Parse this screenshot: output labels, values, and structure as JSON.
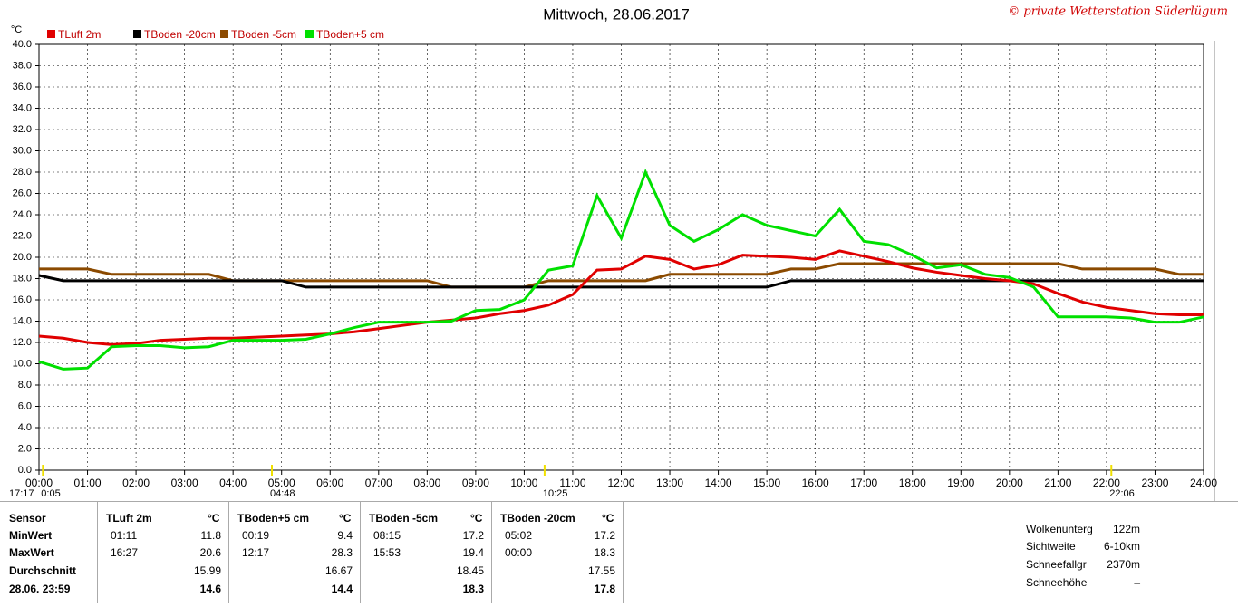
{
  "chart_data": {
    "type": "line",
    "title": "Mittwoch, 28.06.2017",
    "credit": "© private Wetterstation Süderlügum",
    "y_unit": "°C",
    "x": [
      0,
      0.5,
      1,
      1.5,
      2,
      2.5,
      3,
      3.5,
      4,
      4.5,
      5,
      5.5,
      6,
      6.5,
      7,
      7.5,
      8,
      8.5,
      9,
      9.5,
      10,
      10.5,
      11,
      11.5,
      12,
      12.5,
      13,
      13.5,
      14,
      14.5,
      15,
      15.5,
      16,
      16.5,
      17,
      17.5,
      18,
      18.5,
      19,
      19.5,
      20,
      20.5,
      21,
      21.5,
      22,
      22.5,
      23,
      23.5,
      24
    ],
    "series": [
      {
        "name": "TLuft 2m",
        "color": "#e00000",
        "values": [
          12.6,
          12.4,
          12.0,
          11.8,
          11.9,
          12.2,
          12.3,
          12.4,
          12.4,
          12.5,
          12.6,
          12.7,
          12.8,
          13.0,
          13.3,
          13.6,
          13.9,
          14.1,
          14.3,
          14.7,
          15.0,
          15.5,
          16.5,
          18.8,
          18.9,
          20.1,
          19.8,
          18.9,
          19.3,
          20.2,
          20.1,
          20.0,
          19.8,
          20.6,
          20.1,
          19.6,
          19.0,
          18.6,
          18.3,
          18.0,
          17.8,
          17.5,
          16.6,
          15.8,
          15.3,
          15.0,
          14.7,
          14.6,
          14.6
        ]
      },
      {
        "name": "TBoden -20cm",
        "color": "#000000",
        "values": [
          18.3,
          17.8,
          17.8,
          17.8,
          17.8,
          17.8,
          17.8,
          17.8,
          17.8,
          17.8,
          17.8,
          17.2,
          17.2,
          17.2,
          17.2,
          17.2,
          17.2,
          17.2,
          17.2,
          17.2,
          17.2,
          17.2,
          17.2,
          17.2,
          17.2,
          17.2,
          17.2,
          17.2,
          17.2,
          17.2,
          17.2,
          17.8,
          17.8,
          17.8,
          17.8,
          17.8,
          17.8,
          17.8,
          17.8,
          17.8,
          17.8,
          17.8,
          17.8,
          17.8,
          17.8,
          17.8,
          17.8,
          17.8,
          17.8
        ]
      },
      {
        "name": "TBoden -5cm",
        "color": "#8b4a00",
        "values": [
          18.9,
          18.9,
          18.9,
          18.4,
          18.4,
          18.4,
          18.4,
          18.4,
          17.8,
          17.8,
          17.8,
          17.8,
          17.8,
          17.8,
          17.8,
          17.8,
          17.8,
          17.2,
          17.2,
          17.2,
          17.2,
          17.8,
          17.8,
          17.8,
          17.8,
          17.8,
          18.4,
          18.4,
          18.4,
          18.4,
          18.4,
          18.9,
          18.9,
          19.4,
          19.4,
          19.4,
          19.4,
          19.4,
          19.4,
          19.4,
          19.4,
          19.4,
          19.4,
          18.9,
          18.9,
          18.9,
          18.9,
          18.4,
          18.4
        ]
      },
      {
        "name": "TBoden+5 cm",
        "color": "#00e000",
        "values": [
          10.2,
          9.5,
          9.6,
          11.6,
          11.7,
          11.7,
          11.5,
          11.6,
          12.2,
          12.2,
          12.2,
          12.3,
          12.8,
          13.4,
          13.9,
          13.9,
          13.9,
          14.0,
          15.0,
          15.1,
          16.0,
          18.8,
          19.2,
          25.8,
          21.8,
          28.0,
          23.0,
          21.5,
          22.6,
          24.0,
          23.0,
          22.5,
          22.0,
          24.5,
          21.5,
          21.2,
          20.2,
          19.0,
          19.3,
          18.4,
          18.1,
          17.2,
          14.4,
          14.4,
          14.4,
          14.3,
          13.9,
          13.9,
          14.4
        ]
      }
    ],
    "xlim": [
      0,
      24
    ],
    "xticks": [
      {
        "value": 0,
        "label": "00:00"
      },
      {
        "value": 1,
        "label": "01:00"
      },
      {
        "value": 2,
        "label": "02:00"
      },
      {
        "value": 3,
        "label": "03:00"
      },
      {
        "value": 4,
        "label": "04:00"
      },
      {
        "value": 5,
        "label": "05:00"
      },
      {
        "value": 6,
        "label": "06:00"
      },
      {
        "value": 7,
        "label": "07:00"
      },
      {
        "value": 8,
        "label": "08:00"
      },
      {
        "value": 9,
        "label": "09:00"
      },
      {
        "value": 10,
        "label": "10:00"
      },
      {
        "value": 11,
        "label": "11:00"
      },
      {
        "value": 12,
        "label": "12:00"
      },
      {
        "value": 13,
        "label": "13:00"
      },
      {
        "value": 14,
        "label": "14:00"
      },
      {
        "value": 15,
        "label": "15:00"
      },
      {
        "value": 16,
        "label": "16:00"
      },
      {
        "value": 17,
        "label": "17:00"
      },
      {
        "value": 18,
        "label": "18:00"
      },
      {
        "value": 19,
        "label": "19:00"
      },
      {
        "value": 20,
        "label": "20:00"
      },
      {
        "value": 21,
        "label": "21:00"
      },
      {
        "value": 22,
        "label": "22:00"
      },
      {
        "value": 23,
        "label": "23:00"
      },
      {
        "value": 24,
        "label": "24:00"
      }
    ],
    "ylim": [
      0,
      40
    ],
    "yticks": [
      {
        "value": 0,
        "label": "0.0"
      },
      {
        "value": 2,
        "label": "2.0"
      },
      {
        "value": 4,
        "label": "4.0"
      },
      {
        "value": 6,
        "label": "6.0"
      },
      {
        "value": 8,
        "label": "8.0"
      },
      {
        "value": 10,
        "label": "10.0"
      },
      {
        "value": 12,
        "label": "12.0"
      },
      {
        "value": 14,
        "label": "14.0"
      },
      {
        "value": 16,
        "label": "16.0"
      },
      {
        "value": 18,
        "label": "18.0"
      },
      {
        "value": 20,
        "label": "20.0"
      },
      {
        "value": 22,
        "label": "22.0"
      },
      {
        "value": 24,
        "label": "24.0"
      },
      {
        "value": 26,
        "label": "26.0"
      },
      {
        "value": 28,
        "label": "28.0"
      },
      {
        "value": 30,
        "label": "30.0"
      },
      {
        "value": 32,
        "label": "32.0"
      },
      {
        "value": 34,
        "label": "34.0"
      },
      {
        "value": 36,
        "label": "36.0"
      },
      {
        "value": 38,
        "label": "38.0"
      },
      {
        "value": 40,
        "label": "40.0"
      }
    ],
    "grid": true,
    "left_label": "17:17",
    "markers": [
      {
        "x": 0.08,
        "label": "0:05"
      },
      {
        "x": 4.8,
        "label": "04:48"
      },
      {
        "x": 10.42,
        "label": "10:25"
      },
      {
        "x": 22.1,
        "label": "22:06"
      }
    ]
  },
  "table": {
    "row_labels": [
      "Sensor",
      "MinWert",
      "MaxWert",
      "Durchschnitt",
      "28.06. 23:59"
    ],
    "columns": [
      {
        "name": "TLuft 2m",
        "unit": "°C",
        "min_time": "01:11",
        "min": 11.8,
        "max_time": "16:27",
        "max": 20.6,
        "avg": 15.99,
        "current": 14.6
      },
      {
        "name": "TBoden+5 cm",
        "unit": "°C",
        "min_time": "00:19",
        "min": 9.4,
        "max_time": "12:17",
        "max": 28.3,
        "avg": 16.67,
        "current": 14.4
      },
      {
        "name": "TBoden -5cm",
        "unit": "°C",
        "min_time": "08:15",
        "min": 17.2,
        "max_time": "15:53",
        "max": 19.4,
        "avg": 18.45,
        "current": 18.3
      },
      {
        "name": "TBoden -20cm",
        "unit": "°C",
        "min_time": "05:02",
        "min": 17.2,
        "max_time": "00:00",
        "max": 18.3,
        "avg": 17.55,
        "current": 17.8
      }
    ]
  },
  "info": [
    {
      "label": "Wolkenunterg",
      "value": "122m"
    },
    {
      "label": "Sichtweite",
      "value": "6-10km"
    },
    {
      "label": "Schneefallgr",
      "value": "2370m"
    },
    {
      "label": "Schneehöhe",
      "value": "–"
    }
  ]
}
